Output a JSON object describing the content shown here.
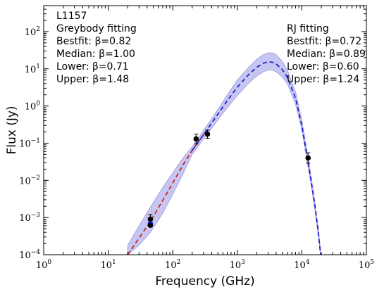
{
  "chart_data": {
    "type": "scatter",
    "xlabel": "Frequency (GHz)",
    "ylabel": "Flux (Jy)",
    "xscale": "log",
    "yscale": "log",
    "xlim": [
      1,
      100000
    ],
    "ylim": [
      0.0001,
      500
    ],
    "x_ticks": [
      {
        "value": 1,
        "base": "10",
        "exp": "0"
      },
      {
        "value": 10,
        "base": "10",
        "exp": "1"
      },
      {
        "value": 100,
        "base": "10",
        "exp": "2"
      },
      {
        "value": 1000,
        "base": "10",
        "exp": "3"
      },
      {
        "value": 10000,
        "base": "10",
        "exp": "4"
      },
      {
        "value": 100000,
        "base": "10",
        "exp": "5"
      }
    ],
    "y_ticks": [
      {
        "value": 0.0001,
        "base": "10",
        "exp": "−4"
      },
      {
        "value": 0.001,
        "base": "10",
        "exp": "−3"
      },
      {
        "value": 0.01,
        "base": "10",
        "exp": "−2"
      },
      {
        "value": 0.1,
        "base": "10",
        "exp": "−1"
      },
      {
        "value": 1,
        "base": "10",
        "exp": "0"
      },
      {
        "value": 10,
        "base": "10",
        "exp": "1"
      },
      {
        "value": 100,
        "base": "10",
        "exp": "2"
      }
    ],
    "annotations": {
      "left": [
        "L1157",
        "Greybody fitting",
        "Bestfit: β=0.82",
        "Median: β=1.00",
        "Lower: β=0.71",
        "Upper: β=1.48"
      ],
      "right": [
        "RJ fitting",
        "Bestfit: β=0.72",
        "Median: β=0.89",
        "Lower: β=0.60",
        "Upper: β=1.24"
      ]
    },
    "observations": [
      {
        "x": 45,
        "y": 0.0009,
        "yerr": [
          0.00025,
          0.0003
        ],
        "color": "#000000"
      },
      {
        "x": 45,
        "y": 0.00068,
        "yerr": [
          8e-05,
          8e-05
        ],
        "color": "#1a1aff"
      },
      {
        "x": 45,
        "y": 0.00062,
        "yerr": [
          6e-05,
          6e-05
        ],
        "color": "#000000"
      },
      {
        "x": 230,
        "y": 0.13,
        "yerr": [
          0.035,
          0.045
        ],
        "color": "#000000"
      },
      {
        "x": 345,
        "y": 0.175,
        "yerr": [
          0.04,
          0.05
        ],
        "color": "#000000"
      },
      {
        "x": 12490,
        "y": 0.04,
        "yerr": [
          0.011,
          0.015
        ],
        "color": "#000000"
      }
    ],
    "curves": [
      {
        "style": "dashed",
        "color": "#cc1111",
        "x": [
          20,
          30,
          45,
          70,
          100,
          150,
          200,
          250,
          300,
          350
        ],
        "y": [
          0.0001,
          0.00028,
          0.00078,
          0.0029,
          0.0085,
          0.029,
          0.064,
          0.11,
          0.17,
          0.23
        ]
      },
      {
        "style": "dashed",
        "color": "#1111cc",
        "x": [
          200,
          300,
          500,
          700,
          1000,
          1500,
          2000,
          2500,
          3000,
          3500,
          4000,
          5000,
          6000,
          8000,
          10000,
          12000,
          14000,
          16000,
          18000,
          19500
        ],
        "y": [
          0.064,
          0.17,
          0.6,
          1.4,
          3.2,
          7.0,
          11.0,
          14.0,
          15.5,
          15.0,
          13.5,
          9.5,
          5.8,
          1.6,
          0.3,
          0.045,
          0.009,
          0.002,
          0.0004,
          0.0001
        ]
      }
    ],
    "band": {
      "color": "#8080e0",
      "x": [
        20,
        30,
        45,
        70,
        100,
        150,
        200,
        300,
        500,
        700,
        1000,
        1500,
        2000,
        2500,
        3000,
        3500,
        4000,
        5000,
        6000,
        8000,
        10000,
        12000,
        14000,
        16000,
        18000,
        19500
      ],
      "upper": [
        0.00018,
        0.0006,
        0.0019,
        0.0065,
        0.016,
        0.044,
        0.08,
        0.22,
        0.8,
        2.0,
        5.0,
        11.0,
        18.0,
        24.0,
        27.0,
        27.0,
        24.0,
        16.0,
        9.0,
        2.4,
        0.42,
        0.062,
        0.012,
        0.0025,
        0.0005,
        0.00013
      ],
      "lower": [
        0.0001,
        0.00018,
        0.0004,
        0.0013,
        0.0042,
        0.017,
        0.05,
        0.13,
        0.42,
        0.9,
        1.9,
        4.1,
        6.4,
        8.2,
        9.2,
        9.2,
        8.3,
        6.0,
        3.8,
        1.1,
        0.22,
        0.034,
        0.0068,
        0.0015,
        0.0003,
        0.0001
      ]
    }
  }
}
